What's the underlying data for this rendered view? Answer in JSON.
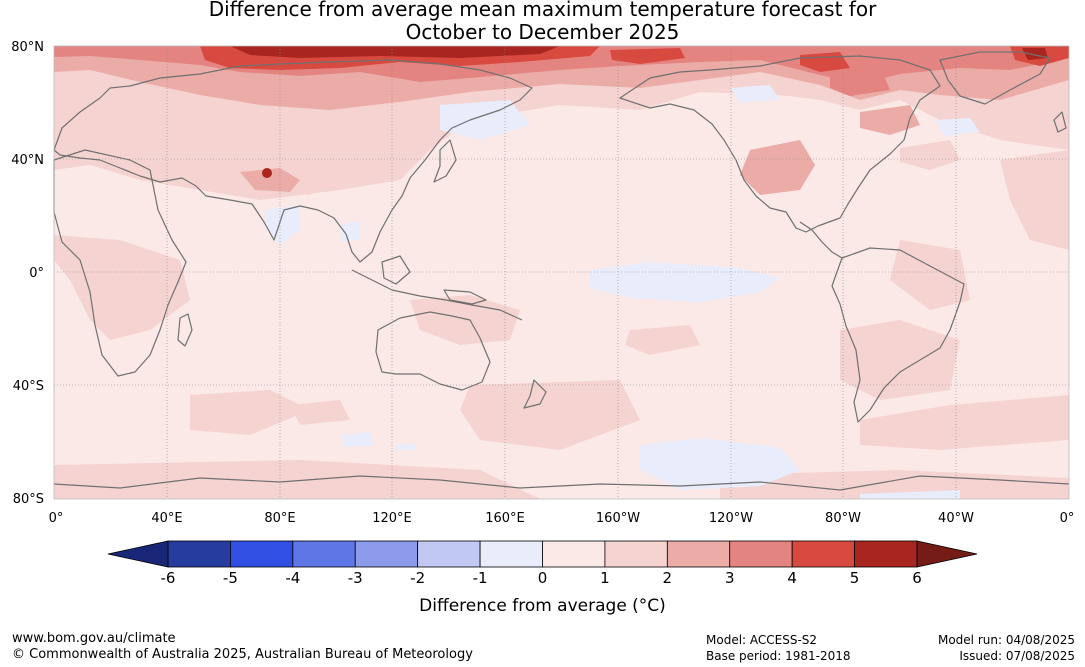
{
  "title": {
    "line1": "Difference from average mean maximum temperature forecast for",
    "line2": "October to December 2025"
  },
  "map": {
    "lat_labels": [
      "80°N",
      "40°N",
      "0°",
      "40°S",
      "80°S"
    ],
    "lon_labels": [
      "0°",
      "40°E",
      "80°E",
      "120°E",
      "160°E",
      "160°W",
      "120°W",
      "80°W",
      "40°W",
      "0°"
    ],
    "anomaly_colors": {
      "0_to_1": "#fbe9e8",
      "1_to_2": "#f5d3d1",
      "2_to_3": "#ebaca8",
      "3_to_4": "#e48480",
      "4_to_5": "#d84a40",
      "5_to_6": "#a8261f",
      "minus1_to_0": "#e9ecfb",
      "minus2_to_minus1": "#c0c7f3",
      "coastline": "#707070"
    }
  },
  "colorbar": {
    "ticks": [
      "-6",
      "-5",
      "-4",
      "-3",
      "-2",
      "-1",
      "0",
      "1",
      "2",
      "3",
      "4",
      "5",
      "6"
    ],
    "colors": [
      "#273c9f",
      "#3050e4",
      "#5f76e6",
      "#8b9bea",
      "#c1c8f2",
      "#e9ecfb",
      "#fbe9e8",
      "#f5d3d1",
      "#ebaca8",
      "#e48480",
      "#d84a40",
      "#a8261f"
    ],
    "low_extend_color": "#1a2778",
    "high_extend_color": "#751c17",
    "label": "Difference from average (°C)"
  },
  "footer": {
    "url": "www.bom.gov.au/climate",
    "copyright": "© Commonwealth of Australia 2025, Australian Bureau of Meteorology",
    "model": "Model: ACCESS-S2",
    "base_period": "Base period: 1981-2018",
    "model_run": "Model run: 04/08/2025",
    "issued": "Issued: 07/08/2025"
  }
}
